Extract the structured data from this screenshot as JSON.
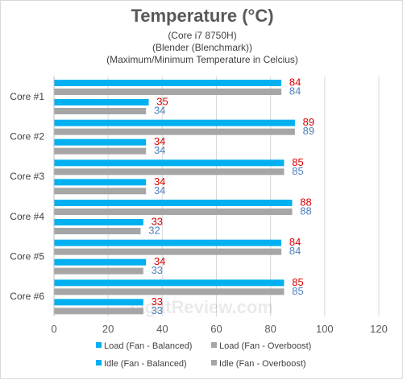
{
  "chart_data": {
    "type": "bar",
    "orientation": "horizontal",
    "title": "Temperature (°C)",
    "subtitles": [
      "(Core i7 8750H)",
      "(Blender (Blenchmark))",
      "(Maximum/Minimum Temperature in Celcius)"
    ],
    "categories": [
      "Core #1",
      "Core #2",
      "Core #3",
      "Core #4",
      "Core #5",
      "Core #6"
    ],
    "series": [
      {
        "name": "Load (Fan - Balanced)",
        "values": [
          84,
          89,
          85,
          88,
          84,
          85
        ],
        "color": "#00b0f0",
        "label_color": "#e00000"
      },
      {
        "name": "Load (Fan - Overboost)",
        "values": [
          84,
          89,
          85,
          88,
          84,
          85
        ],
        "color": "#a6a6a6",
        "label_color": "#4f81bd"
      },
      {
        "name": "Idle (Fan - Balanced)",
        "values": [
          35,
          34,
          34,
          33,
          34,
          33
        ],
        "color": "#00b0f0",
        "label_color": "#e00000"
      },
      {
        "name": "Idle (Fan - Overboost)",
        "values": [
          34,
          34,
          34,
          32,
          33,
          33
        ],
        "color": "#a6a6a6",
        "label_color": "#4f81bd"
      }
    ],
    "xlim": [
      0,
      120
    ],
    "x_ticks": [
      0,
      20,
      40,
      60,
      80,
      100,
      120
    ],
    "grid": true,
    "legend_position": "bottom",
    "watermark": "JagatReview.com"
  }
}
